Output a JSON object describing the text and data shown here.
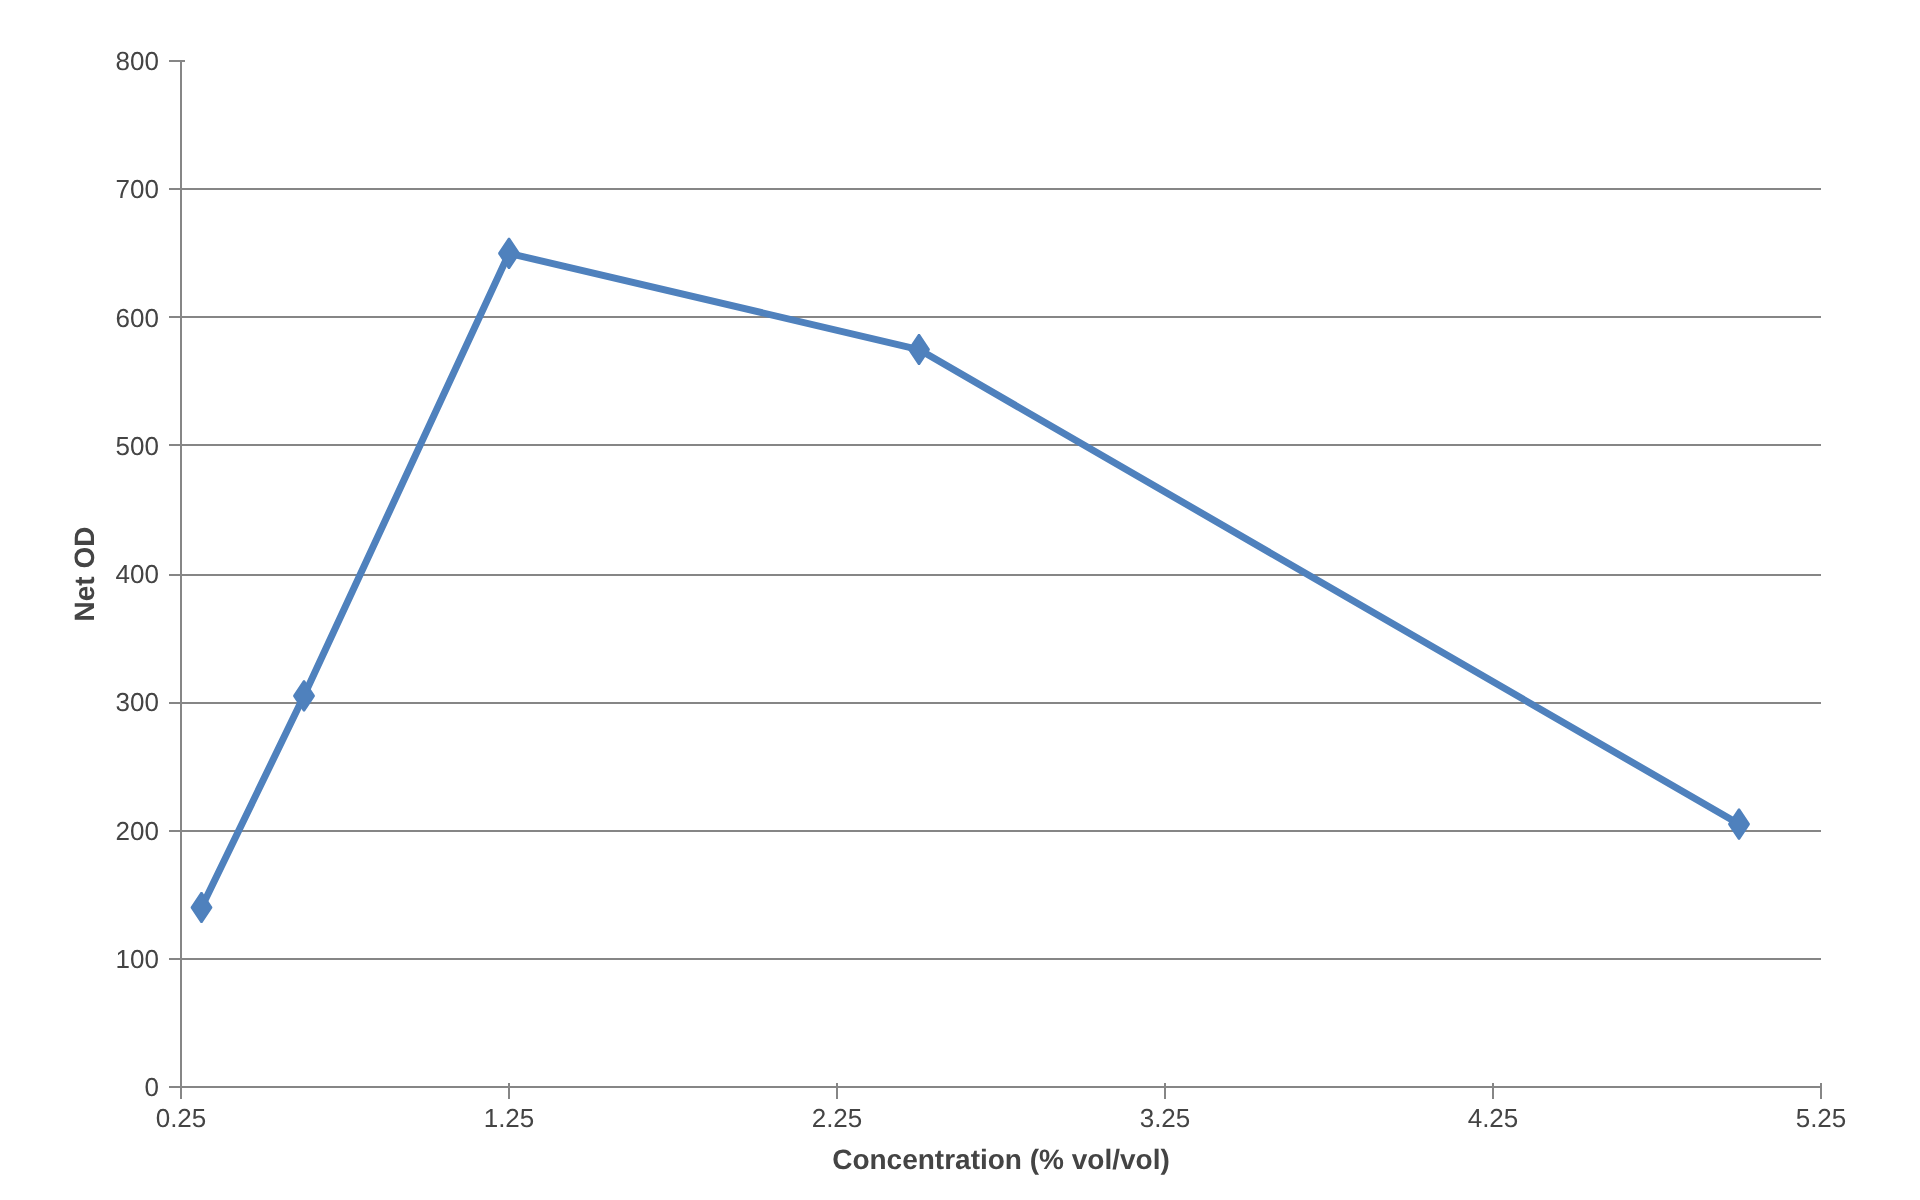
{
  "chart_data": {
    "type": "line",
    "xlabel": "Concentration (% vol/vol)",
    "ylabel": "Net OD",
    "x": [
      0.3125,
      0.625,
      1.25,
      2.5,
      5
    ],
    "series": [
      {
        "color": "#4f81bd",
        "values": [
          140,
          305,
          650,
          575,
          205
        ]
      }
    ],
    "xlim": [
      0.25,
      5.25
    ],
    "xticks": [
      0.25,
      1.25,
      2.25,
      3.25,
      4.25,
      5.25
    ],
    "ylim": [
      0,
      800
    ],
    "yticks": [
      0,
      100,
      200,
      300,
      400,
      500,
      600,
      700,
      800
    ],
    "grid": "y",
    "marker": "diamond",
    "line_style": "solid"
  }
}
